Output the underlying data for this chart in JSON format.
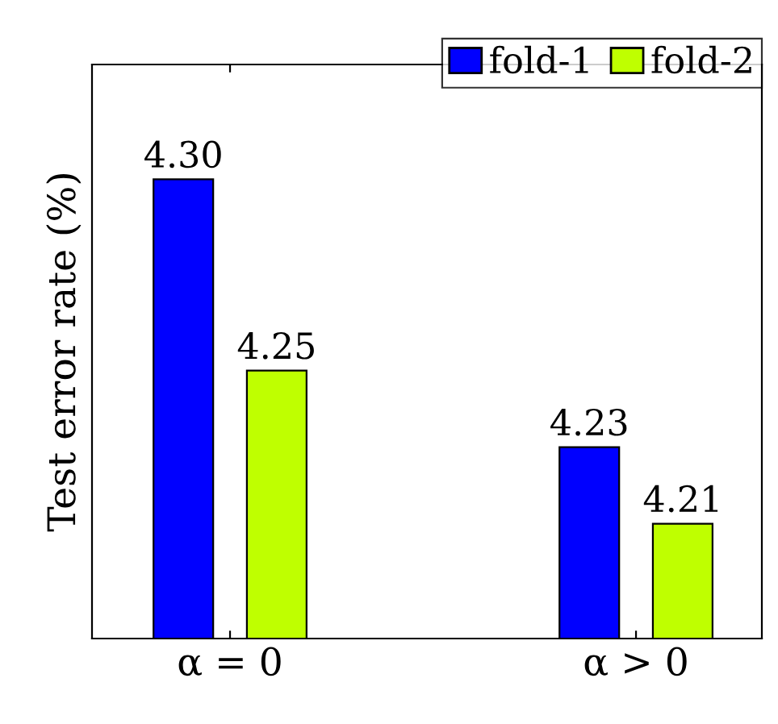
{
  "chart_data": {
    "type": "bar",
    "ylabel": "Test error rate (%)",
    "categories": [
      "α = 0",
      "α > 0"
    ],
    "series": [
      {
        "name": "fold-1",
        "color": "#0000ff",
        "values": [
          4.3,
          4.23
        ],
        "value_labels": [
          "4.30",
          "4.23"
        ]
      },
      {
        "name": "fold-2",
        "color": "#bfff00",
        "values": [
          4.25,
          4.21
        ],
        "value_labels": [
          "4.25",
          "4.21"
        ]
      }
    ],
    "ylim": [
      4.18,
      4.33
    ],
    "legend": "top right",
    "tick_labels": "x",
    "grid": false
  }
}
